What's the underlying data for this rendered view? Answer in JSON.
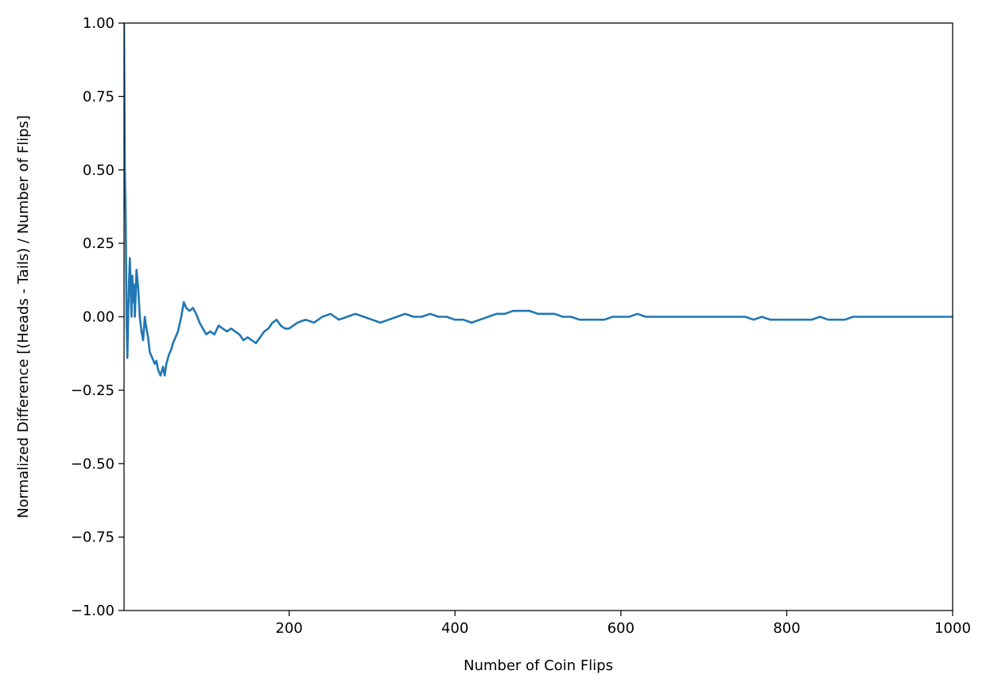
{
  "chart_data": {
    "type": "line",
    "title": "",
    "xlabel": "Number of Coin Flips",
    "ylabel": "Normalized Difference [(Heads - Tails) / Number of Flips]",
    "xlim": [
      1,
      1000
    ],
    "ylim": [
      -1.0,
      1.0
    ],
    "xticks": [
      200,
      400,
      600,
      800,
      1000
    ],
    "xtick_labels": [
      "200",
      "400",
      "600",
      "800",
      "1000"
    ],
    "yticks": [
      -1.0,
      -0.75,
      -0.5,
      -0.25,
      0.0,
      0.25,
      0.5,
      0.75,
      1.0
    ],
    "ytick_labels": [
      "−1.00",
      "−0.75",
      "−0.50",
      "−0.25",
      "0.00",
      "0.25",
      "0.50",
      "0.75",
      "1.00"
    ],
    "grid": false,
    "legend": "none",
    "series": [
      {
        "color": "#1f77b4",
        "x": [
          1,
          2,
          3,
          4,
          5,
          6,
          7,
          8,
          9,
          10,
          11,
          12,
          13,
          14,
          15,
          16,
          18,
          20,
          22,
          24,
          26,
          28,
          30,
          32,
          35,
          38,
          40,
          42,
          45,
          48,
          50,
          52,
          55,
          58,
          60,
          63,
          66,
          70,
          73,
          76,
          80,
          84,
          88,
          92,
          96,
          100,
          105,
          110,
          115,
          120,
          125,
          130,
          135,
          140,
          145,
          150,
          155,
          160,
          165,
          170,
          175,
          180,
          185,
          190,
          195,
          200,
          210,
          220,
          230,
          240,
          250,
          260,
          270,
          280,
          290,
          300,
          310,
          320,
          330,
          340,
          350,
          360,
          370,
          380,
          390,
          400,
          410,
          420,
          430,
          440,
          450,
          460,
          470,
          480,
          490,
          500,
          510,
          520,
          530,
          540,
          550,
          560,
          570,
          580,
          590,
          600,
          610,
          620,
          630,
          640,
          650,
          660,
          670,
          680,
          690,
          700,
          710,
          720,
          730,
          740,
          750,
          760,
          770,
          780,
          790,
          800,
          810,
          820,
          830,
          840,
          850,
          860,
          870,
          880,
          890,
          900,
          910,
          920,
          930,
          940,
          950,
          960,
          970,
          980,
          990,
          1000
        ],
        "y": [
          1.0,
          0.5,
          0.33,
          0.0,
          -0.14,
          0.0,
          0.12,
          0.2,
          0.1,
          0.0,
          0.14,
          0.05,
          0.11,
          0.0,
          0.07,
          0.16,
          0.1,
          0.0,
          -0.05,
          -0.08,
          0.0,
          -0.04,
          -0.07,
          -0.12,
          -0.14,
          -0.16,
          -0.15,
          -0.18,
          -0.2,
          -0.17,
          -0.2,
          -0.16,
          -0.13,
          -0.11,
          -0.09,
          -0.07,
          -0.05,
          0.0,
          0.05,
          0.03,
          0.02,
          0.03,
          0.01,
          -0.02,
          -0.04,
          -0.06,
          -0.05,
          -0.06,
          -0.03,
          -0.04,
          -0.05,
          -0.04,
          -0.05,
          -0.06,
          -0.08,
          -0.07,
          -0.08,
          -0.09,
          -0.07,
          -0.05,
          -0.04,
          -0.02,
          -0.01,
          -0.03,
          -0.04,
          -0.04,
          -0.02,
          -0.01,
          -0.02,
          0.0,
          0.01,
          -0.01,
          0.0,
          0.01,
          0.0,
          -0.01,
          -0.02,
          -0.01,
          0.0,
          0.01,
          0.0,
          0.0,
          0.01,
          0.0,
          0.0,
          -0.01,
          -0.01,
          -0.02,
          -0.01,
          0.0,
          0.01,
          0.01,
          0.02,
          0.02,
          0.02,
          0.01,
          0.01,
          0.01,
          0.0,
          0.0,
          -0.01,
          -0.01,
          -0.01,
          -0.01,
          0.0,
          0.0,
          0.0,
          0.01,
          0.0,
          0.0,
          0.0,
          0.0,
          0.0,
          0.0,
          0.0,
          0.0,
          0.0,
          0.0,
          0.0,
          0.0,
          0.0,
          -0.01,
          0.0,
          -0.01,
          -0.01,
          -0.01,
          -0.01,
          -0.01,
          -0.01,
          0.0,
          -0.01,
          -0.01,
          -0.01,
          0.0,
          0.0,
          0.0,
          0.0,
          0.0,
          0.0,
          0.0,
          0.0,
          0.0,
          0.0,
          0.0,
          0.0,
          0.0
        ]
      }
    ]
  }
}
